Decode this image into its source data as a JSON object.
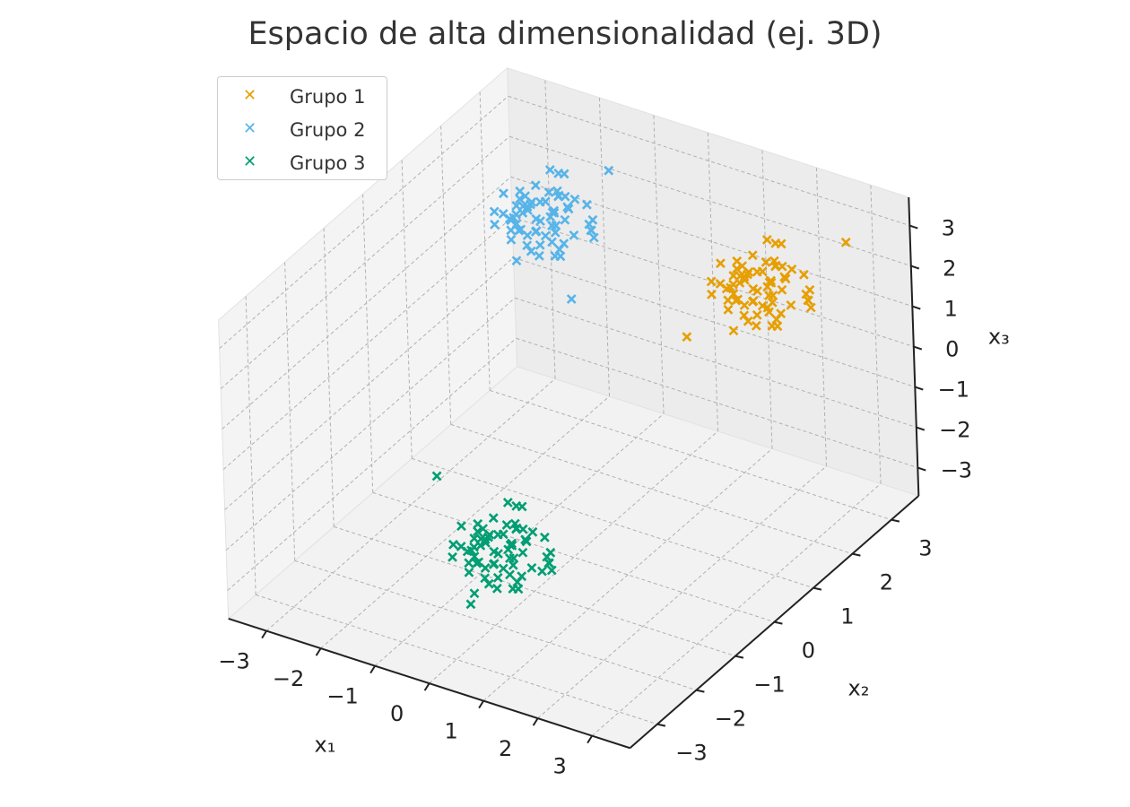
{
  "chart_data": {
    "type": "scatter",
    "projection": "3d",
    "title": "Espacio de alta dimensionalidad (ej. 3D)",
    "xlabel": "x₁",
    "ylabel": "x₂",
    "zlabel": "x₃",
    "xlim": [
      -3.7,
      3.7
    ],
    "ylim": [
      -3.7,
      3.7
    ],
    "zlim": [
      -3.7,
      3.7
    ],
    "x_ticks": [
      "−3",
      "−2",
      "−1",
      "0",
      "1",
      "2",
      "3"
    ],
    "y_ticks": [
      "−3",
      "−2",
      "−1",
      "0",
      "1",
      "2",
      "3"
    ],
    "z_ticks": [
      "−3",
      "−2",
      "−1",
      "0",
      "1",
      "2",
      "3"
    ],
    "x_tick_values": [
      -3,
      -2,
      -1,
      0,
      1,
      2,
      3
    ],
    "y_tick_values": [
      -3,
      -2,
      -1,
      0,
      1,
      2,
      3
    ],
    "z_tick_values": [
      -3,
      -2,
      -1,
      0,
      1,
      2,
      3
    ],
    "grid": true,
    "marker": "x",
    "legend_position": "top-left",
    "series": [
      {
        "name": "Grupo 1",
        "color": "#E69F00",
        "center": [
          2.0,
          2.0,
          2.0
        ],
        "spread": 0.5,
        "count": 70,
        "points": [
          [
            1.85,
            2.22,
            1.58
          ],
          [
            2.62,
            1.91,
            2.45
          ],
          [
            1.47,
            2.34,
            2.11
          ],
          [
            2.18,
            1.63,
            1.72
          ],
          [
            1.93,
            2.71,
            2.63
          ],
          [
            2.41,
            2.05,
            1.34
          ],
          [
            1.58,
            1.77,
            2.27
          ],
          [
            2.27,
            2.48,
            2.09
          ],
          [
            1.71,
            1.92,
            1.95
          ],
          [
            2.95,
            2.16,
            2.38
          ],
          [
            1.34,
            2.59,
            1.66
          ],
          [
            2.06,
            1.38,
            2.71
          ],
          [
            1.88,
            2.26,
            1.21
          ],
          [
            2.53,
            1.69,
            2.05
          ],
          [
            1.62,
            2.87,
            1.89
          ],
          [
            2.34,
            2.31,
            2.57
          ],
          [
            1.97,
            1.54,
            1.47
          ],
          [
            2.71,
            2.44,
            1.78
          ],
          [
            1.41,
            2.02,
            2.49
          ],
          [
            2.12,
            2.65,
            1.93
          ],
          [
            1.79,
            1.81,
            2.31
          ],
          [
            2.47,
            1.95,
            1.62
          ],
          [
            1.56,
            2.41,
            1.81
          ],
          [
            2.21,
            1.72,
            2.14
          ],
          [
            1.91,
            2.53,
            2.86
          ],
          [
            2.83,
            1.84,
            2.22
          ],
          [
            1.27,
            1.96,
            1.71
          ],
          [
            2.09,
            2.37,
            1.52
          ],
          [
            1.68,
            2.12,
            2.04
          ],
          [
            2.38,
            2.79,
            1.98
          ],
          [
            1.83,
            1.61,
            1.87
          ],
          [
            2.57,
            2.24,
            2.66
          ],
          [
            1.52,
            2.68,
            2.18
          ],
          [
            2.15,
            1.87,
            1.39
          ],
          [
            1.99,
            2.15,
            2.42
          ],
          [
            2.66,
            1.58,
            1.85
          ],
          [
            1.44,
            2.29,
            1.97
          ],
          [
            2.29,
            2.09,
            2.33
          ],
          [
            1.75,
            2.46,
            1.58
          ],
          [
            2.44,
            1.79,
            2.55
          ],
          [
            1.63,
            1.88,
            1.79
          ],
          [
            2.02,
            2.58,
            2.23
          ],
          [
            1.86,
            1.98,
            1.68
          ],
          [
            2.73,
            2.36,
            2.01
          ],
          [
            1.49,
            1.67,
            2.37
          ],
          [
            2.24,
            2.19,
            1.91
          ],
          [
            1.94,
            2.84,
            2.51
          ],
          [
            2.51,
            2.01,
            1.73
          ],
          [
            1.66,
            2.38,
            2.08
          ],
          [
            2.19,
            1.52,
            1.96
          ],
          [
            1.81,
            2.07,
            2.29
          ],
          [
            2.88,
            2.27,
            1.82
          ],
          [
            1.38,
            2.47,
            2.15
          ],
          [
            2.04,
            1.84,
            2.64
          ],
          [
            1.73,
            2.63,
            1.91
          ],
          [
            2.36,
            1.93,
            2.18
          ],
          [
            1.59,
            2.18,
            1.54
          ],
          [
            2.13,
            2.42,
            2.39
          ],
          [
            1.89,
            1.73,
            2.02
          ],
          [
            2.61,
            2.56,
            1.64
          ],
          [
            1.53,
            1.99,
            1.94
          ],
          [
            2.27,
            2.21,
            2.76
          ],
          [
            1.77,
            2.33,
            1.75
          ],
          [
            2.45,
            1.64,
            2.21
          ],
          [
            1.96,
            2.49,
            1.86
          ],
          [
            2.33,
            2.03,
            2.45
          ],
          [
            1.64,
            2.25,
            2.33
          ],
          [
            3.1,
            2.9,
            3.0
          ],
          [
            1.2,
            1.4,
            1.1
          ],
          [
            2.8,
            1.3,
            2.6
          ]
        ]
      },
      {
        "name": "Grupo 2",
        "color": "#56B4E9",
        "center": [
          -2.0,
          2.0,
          2.0
        ],
        "spread": 0.5,
        "count": 70,
        "points": [
          [
            -2.15,
            2.22,
            1.58
          ],
          [
            -1.38,
            1.91,
            2.45
          ],
          [
            -2.53,
            2.34,
            2.11
          ],
          [
            -1.82,
            1.63,
            1.72
          ],
          [
            -2.07,
            2.71,
            2.63
          ],
          [
            -1.59,
            2.05,
            1.34
          ],
          [
            -2.42,
            1.77,
            2.27
          ],
          [
            -1.73,
            2.48,
            2.09
          ],
          [
            -2.29,
            1.92,
            1.95
          ],
          [
            -1.05,
            2.16,
            2.38
          ],
          [
            -2.66,
            2.59,
            1.66
          ],
          [
            -1.94,
            1.38,
            2.71
          ],
          [
            -2.12,
            2.26,
            1.21
          ],
          [
            -1.47,
            1.69,
            2.05
          ],
          [
            -2.38,
            2.87,
            1.89
          ],
          [
            -1.66,
            2.31,
            2.57
          ],
          [
            -2.03,
            1.54,
            1.47
          ],
          [
            -1.29,
            2.44,
            1.78
          ],
          [
            -2.59,
            2.02,
            2.49
          ],
          [
            -1.88,
            2.65,
            1.93
          ],
          [
            -2.21,
            1.81,
            2.31
          ],
          [
            -1.53,
            1.95,
            1.62
          ],
          [
            -2.44,
            2.41,
            1.81
          ],
          [
            -1.79,
            1.72,
            2.14
          ],
          [
            -2.09,
            2.53,
            2.86
          ],
          [
            -1.17,
            1.84,
            2.22
          ],
          [
            -2.73,
            1.96,
            1.71
          ],
          [
            -1.91,
            2.37,
            1.52
          ],
          [
            -2.32,
            2.12,
            2.04
          ],
          [
            -1.62,
            2.79,
            1.98
          ],
          [
            -2.17,
            1.61,
            1.87
          ],
          [
            -1.43,
            2.24,
            2.66
          ],
          [
            -2.48,
            2.68,
            2.18
          ],
          [
            -1.85,
            1.87,
            1.39
          ],
          [
            -2.01,
            2.15,
            2.42
          ],
          [
            -1.34,
            1.58,
            1.85
          ],
          [
            -2.56,
            2.29,
            1.97
          ],
          [
            -1.71,
            2.09,
            2.33
          ],
          [
            -2.25,
            2.46,
            1.58
          ],
          [
            -1.56,
            1.79,
            2.55
          ],
          [
            -2.37,
            1.88,
            1.79
          ],
          [
            -1.98,
            2.58,
            2.23
          ],
          [
            -2.14,
            1.98,
            1.68
          ],
          [
            -1.27,
            2.36,
            2.01
          ],
          [
            -2.51,
            1.67,
            2.37
          ],
          [
            -1.76,
            2.19,
            1.91
          ],
          [
            -2.06,
            2.84,
            2.51
          ],
          [
            -1.49,
            2.01,
            1.73
          ],
          [
            -2.34,
            2.38,
            2.08
          ],
          [
            -1.81,
            1.52,
            1.96
          ],
          [
            -2.19,
            2.07,
            2.29
          ],
          [
            -1.12,
            2.27,
            1.82
          ],
          [
            -2.62,
            2.47,
            2.15
          ],
          [
            -1.96,
            1.84,
            2.64
          ],
          [
            -2.27,
            2.63,
            1.91
          ],
          [
            -1.64,
            1.93,
            2.18
          ],
          [
            -2.41,
            2.18,
            1.54
          ],
          [
            -1.87,
            2.42,
            2.39
          ],
          [
            -2.11,
            1.73,
            2.02
          ],
          [
            -1.39,
            2.56,
            1.64
          ],
          [
            -2.47,
            1.99,
            1.94
          ],
          [
            -1.73,
            2.21,
            2.76
          ],
          [
            -2.23,
            2.33,
            1.75
          ],
          [
            -1.55,
            1.64,
            2.21
          ],
          [
            -2.04,
            2.49,
            1.86
          ],
          [
            -1.67,
            2.03,
            2.45
          ],
          [
            -2.36,
            2.25,
            2.33
          ],
          [
            -1.0,
            1.5,
            1.0
          ],
          [
            -2.9,
            2.6,
            1.2
          ],
          [
            -1.2,
            2.8,
            3.0
          ]
        ]
      },
      {
        "name": "Grupo 3",
        "color": "#009E73",
        "center": [
          0.0,
          -2.0,
          -2.0
        ],
        "spread": 0.5,
        "count": 70,
        "points": [
          [
            -0.15,
            -1.78,
            -2.42
          ],
          [
            0.62,
            -2.09,
            -1.55
          ],
          [
            -0.53,
            -1.66,
            -1.89
          ],
          [
            0.18,
            -2.37,
            -2.28
          ],
          [
            -0.07,
            -1.29,
            -1.37
          ],
          [
            0.41,
            -1.95,
            -2.66
          ],
          [
            -0.42,
            -2.23,
            -1.73
          ],
          [
            0.27,
            -1.52,
            -1.91
          ],
          [
            -0.29,
            -2.08,
            -2.05
          ],
          [
            0.95,
            -1.84,
            -1.62
          ],
          [
            -0.66,
            -1.41,
            -2.34
          ],
          [
            0.06,
            -2.62,
            -1.29
          ],
          [
            -0.12,
            -1.74,
            -2.79
          ],
          [
            0.53,
            -2.31,
            -1.95
          ],
          [
            -0.38,
            -1.13,
            -2.11
          ],
          [
            0.34,
            -1.69,
            -1.43
          ],
          [
            -0.03,
            -2.46,
            -2.53
          ],
          [
            0.71,
            -1.56,
            -2.22
          ],
          [
            -0.59,
            -1.98,
            -1.51
          ],
          [
            0.12,
            -1.35,
            -2.07
          ],
          [
            -0.21,
            -2.19,
            -1.69
          ],
          [
            0.47,
            -2.05,
            -2.38
          ],
          [
            -0.44,
            -1.59,
            -2.19
          ],
          [
            0.21,
            -2.28,
            -1.86
          ],
          [
            -0.09,
            -1.47,
            -1.14
          ],
          [
            0.83,
            -2.16,
            -1.78
          ],
          [
            -0.73,
            -2.04,
            -2.29
          ],
          [
            0.09,
            -1.63,
            -2.48
          ],
          [
            -0.32,
            -1.88,
            -1.96
          ],
          [
            0.38,
            -1.21,
            -2.02
          ],
          [
            -0.17,
            -2.39,
            -2.13
          ],
          [
            0.57,
            -1.76,
            -1.34
          ],
          [
            -0.48,
            -1.32,
            -1.82
          ],
          [
            0.15,
            -2.13,
            -2.61
          ],
          [
            -0.01,
            -1.85,
            -1.58
          ],
          [
            0.66,
            -2.42,
            -2.15
          ],
          [
            -0.56,
            -1.71,
            -2.03
          ],
          [
            0.29,
            -1.91,
            -1.67
          ],
          [
            -0.25,
            -1.54,
            -2.42
          ],
          [
            0.44,
            -2.21,
            -1.45
          ],
          [
            -0.37,
            -2.12,
            -2.21
          ],
          [
            0.02,
            -1.42,
            -1.77
          ],
          [
            -0.14,
            -2.02,
            -2.32
          ],
          [
            0.73,
            -1.64,
            -1.99
          ],
          [
            -0.49,
            -2.33,
            -1.63
          ],
          [
            0.24,
            -1.81,
            -2.09
          ],
          [
            -0.06,
            -1.16,
            -1.49
          ],
          [
            0.51,
            -1.99,
            -2.27
          ],
          [
            -0.34,
            -1.62,
            -1.92
          ],
          [
            0.19,
            -2.48,
            -2.04
          ],
          [
            -0.19,
            -1.93,
            -1.71
          ],
          [
            0.88,
            -1.73,
            -2.18
          ],
          [
            -0.62,
            -1.53,
            -1.85
          ],
          [
            0.04,
            -2.16,
            -1.36
          ],
          [
            -0.27,
            -1.37,
            -2.09
          ],
          [
            0.36,
            -2.07,
            -1.82
          ],
          [
            -0.41,
            -1.82,
            -2.46
          ],
          [
            0.13,
            -1.58,
            -1.61
          ],
          [
            -0.11,
            -2.27,
            -1.98
          ],
          [
            0.61,
            -1.44,
            -2.36
          ],
          [
            -0.47,
            -2.01,
            -2.06
          ],
          [
            0.27,
            -1.79,
            -1.24
          ],
          [
            -0.23,
            -1.67,
            -2.25
          ],
          [
            0.45,
            -2.36,
            -1.79
          ],
          [
            -0.04,
            -1.51,
            -2.14
          ],
          [
            0.33,
            -1.97,
            -1.55
          ],
          [
            -0.36,
            -1.75,
            -1.67
          ],
          [
            1.2,
            -2.4,
            -1.5
          ],
          [
            -1.3,
            -1.6,
            -0.9
          ],
          [
            0.3,
            -3.0,
            -2.2
          ]
        ]
      }
    ]
  }
}
